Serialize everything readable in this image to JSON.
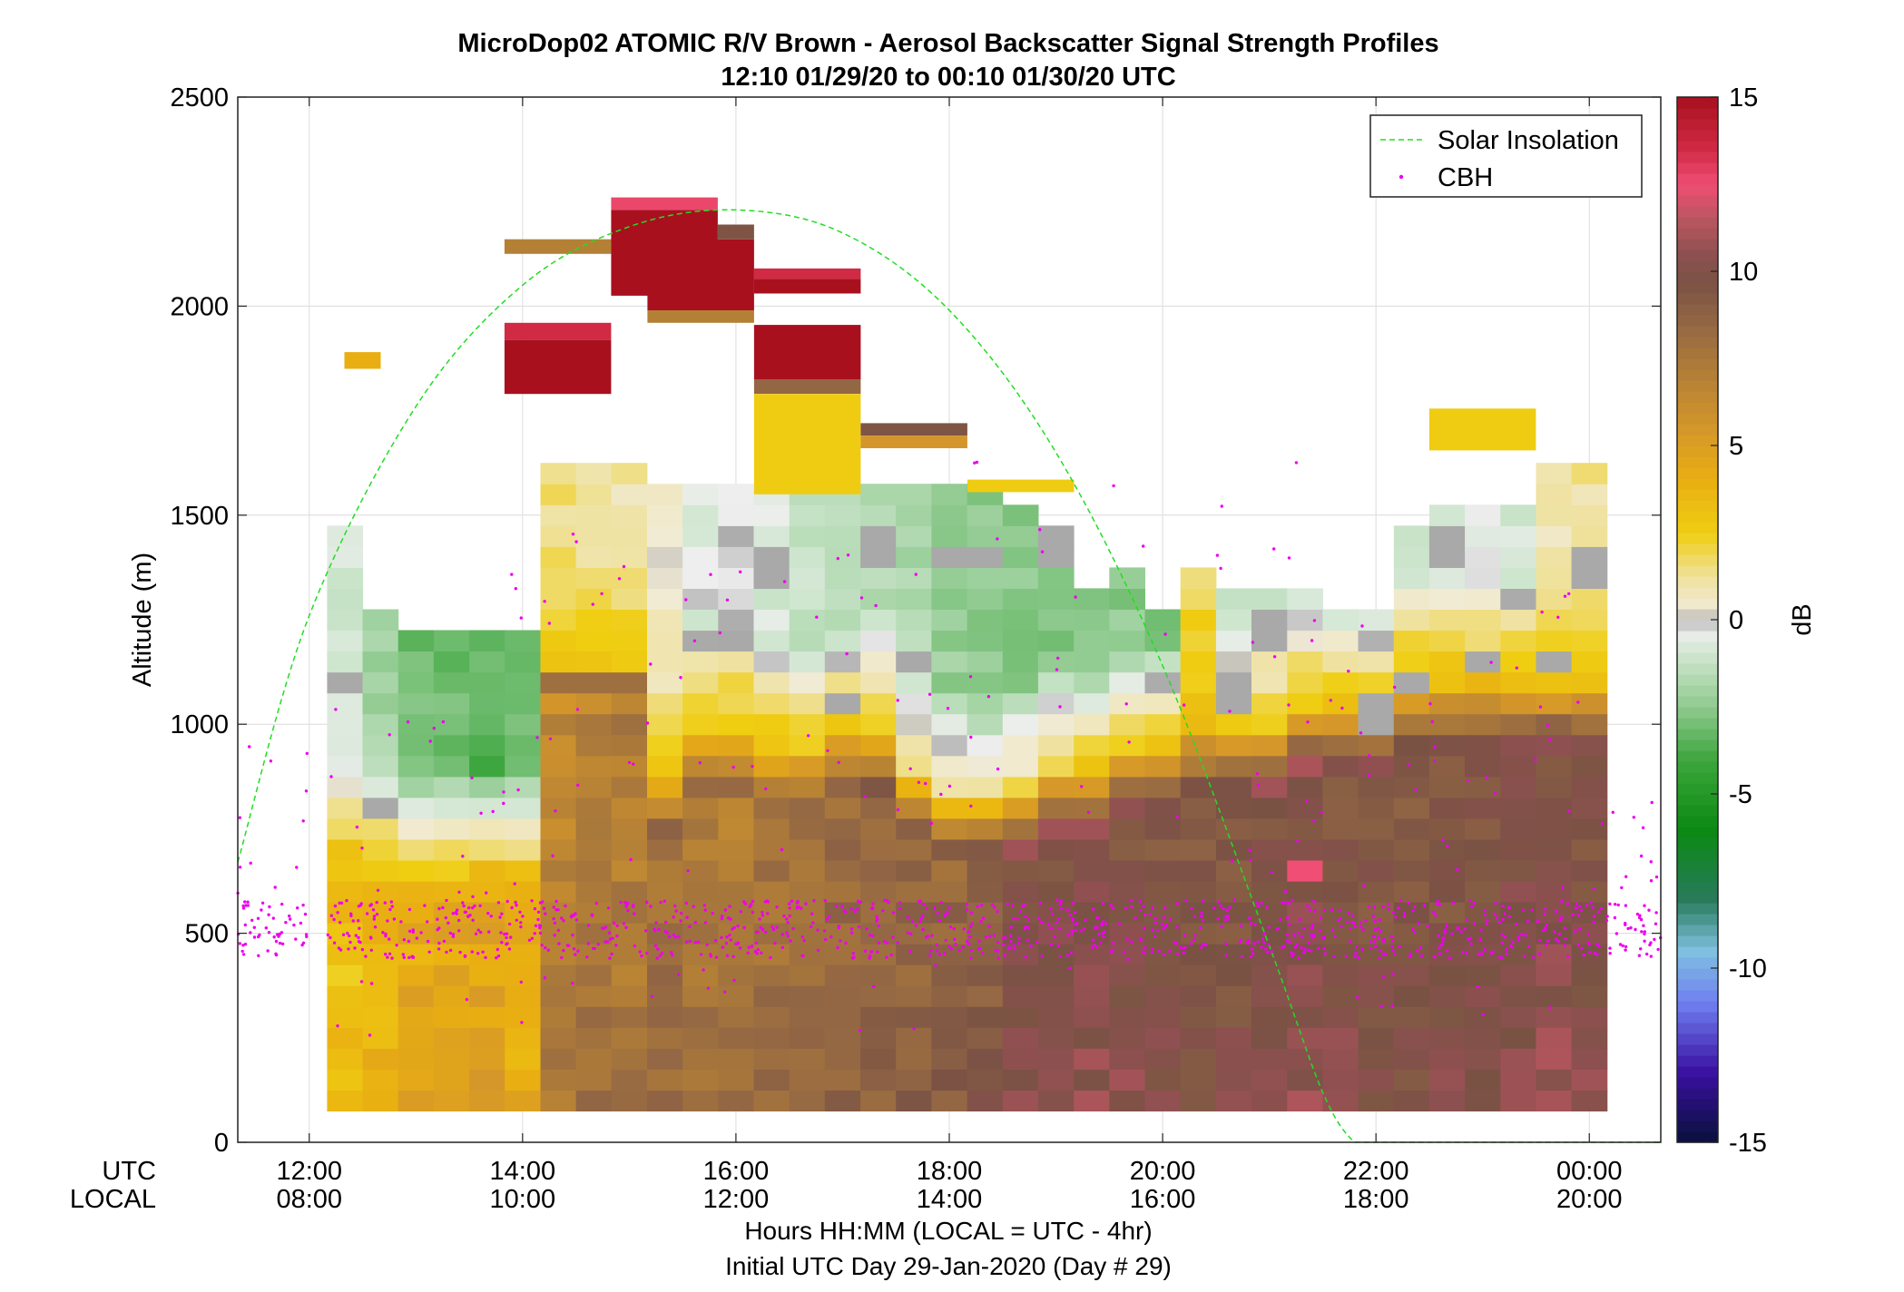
{
  "chart_data": {
    "type": "heatmap",
    "title": "MicroDop02 ATOMIC R/V Brown - Aerosol Backscatter Signal Strength Profiles",
    "subtitle": "12:10 01/29/20 to 00:10 01/30/20  UTC",
    "ylabel": "Altitude (m)",
    "xlabel_line1": "Hours HH:MM  (LOCAL = UTC - 4hr)",
    "xlabel_line2": "Initial UTC Day 29-Jan-2020 (Day # 29)",
    "utc_row_label": "UTC",
    "local_row_label": "LOCAL",
    "colorbar_label": "dB",
    "xlim_utc_hours": [
      11.33,
      24.67
    ],
    "ylim": [
      0,
      2500
    ],
    "clim": [
      -15,
      15
    ],
    "grid": true,
    "legend_position": "top-right",
    "legend": [
      {
        "name": "Solar Insolation",
        "style": "dashed-line",
        "color": "#22dd22"
      },
      {
        "name": "CBH",
        "style": "dot",
        "color": "#ee00ee"
      }
    ],
    "x_ticks": [
      {
        "utc_hour": 12,
        "utc": "12:00",
        "local": "08:00"
      },
      {
        "utc_hour": 14,
        "utc": "14:00",
        "local": "10:00"
      },
      {
        "utc_hour": 16,
        "utc": "16:00",
        "local": "12:00"
      },
      {
        "utc_hour": 18,
        "utc": "18:00",
        "local": "14:00"
      },
      {
        "utc_hour": 20,
        "utc": "20:00",
        "local": "16:00"
      },
      {
        "utc_hour": 22,
        "utc": "22:00",
        "local": "18:00"
      },
      {
        "utc_hour": 24,
        "utc": "00:00",
        "local": "20:00"
      }
    ],
    "y_ticks": [
      {
        "value": 0,
        "label": "0"
      },
      {
        "value": 500,
        "label": "500"
      },
      {
        "value": 1000,
        "label": "1000"
      },
      {
        "value": 1500,
        "label": "1500"
      },
      {
        "value": 2000,
        "label": "2000"
      },
      {
        "value": 2500,
        "label": "2500"
      }
    ],
    "colorbar_ticks": [
      {
        "value": 15,
        "label": "15"
      },
      {
        "value": 10,
        "label": "10"
      },
      {
        "value": 5,
        "label": "5"
      },
      {
        "value": 0,
        "label": "0"
      },
      {
        "value": -5,
        "label": "-5"
      },
      {
        "value": -10,
        "label": "-10"
      },
      {
        "value": -15,
        "label": "-15"
      }
    ],
    "colormap_stops": [
      {
        "v": -15,
        "color": "#08103a"
      },
      {
        "v": -13,
        "color": "#3a10a0"
      },
      {
        "v": -11,
        "color": "#6f7ff0"
      },
      {
        "v": -9.5,
        "color": "#7fc0e0"
      },
      {
        "v": -8,
        "color": "#287a5a"
      },
      {
        "v": -6,
        "color": "#0b8a12"
      },
      {
        "v": -4,
        "color": "#3ea63e"
      },
      {
        "v": -2.5,
        "color": "#8fca8f"
      },
      {
        "v": -1,
        "color": "#cfe6cf"
      },
      {
        "v": -0.3,
        "color": "#eeeeee"
      },
      {
        "v": 0,
        "color": "#a9a9a9"
      },
      {
        "v": 0.3,
        "color": "#f1ebd6"
      },
      {
        "v": 1.2,
        "color": "#efe2a0"
      },
      {
        "v": 2.5,
        "color": "#efce12"
      },
      {
        "v": 4,
        "color": "#e9ae12"
      },
      {
        "v": 5.5,
        "color": "#d4962a"
      },
      {
        "v": 7,
        "color": "#b48036"
      },
      {
        "v": 8.5,
        "color": "#936744"
      },
      {
        "v": 9.7,
        "color": "#7a5244"
      },
      {
        "v": 10.5,
        "color": "#8e5050"
      },
      {
        "v": 11.5,
        "color": "#b9575f"
      },
      {
        "v": 12.5,
        "color": "#f04e74"
      },
      {
        "v": 13.5,
        "color": "#d02a44"
      },
      {
        "v": 15,
        "color": "#a8101e"
      }
    ],
    "profile_columns_utc_start": [
      12.167,
      12.5,
      12.833,
      13.167,
      13.5,
      13.833,
      14.167,
      14.5,
      14.833,
      15.167,
      15.5,
      15.833,
      16.167,
      16.5,
      16.833,
      17.167,
      17.5,
      17.833,
      18.167,
      18.5,
      18.833,
      19.167,
      19.5,
      19.833,
      20.167,
      20.5,
      20.833,
      21.167,
      21.5,
      21.833,
      22.167,
      22.5,
      22.833,
      23.167,
      23.5,
      23.833
    ],
    "profile_column_width_hours": 0.333,
    "range_bin_m": 50,
    "profiles_db": [
      {
        "base": 75,
        "top": 1475,
        "low": 3.5,
        "mid": 2.8,
        "bl": 700,
        "upper": -1.0,
        "peak_alt": 1100,
        "peak_db": 0.0
      },
      {
        "base": 75,
        "top": 1250,
        "low": 4.2,
        "mid": 2.6,
        "bl": 680,
        "upper": -2.0,
        "peak_alt": 800,
        "peak_db": 0.0
      },
      {
        "base": 75,
        "top": 1225,
        "low": 5.0,
        "mid": 3.0,
        "bl": 650,
        "upper": -3.0
      },
      {
        "base": 75,
        "top": 1225,
        "low": 5.0,
        "mid": 2.9,
        "bl": 650,
        "upper": -3.2
      },
      {
        "base": 75,
        "top": 1225,
        "low": 5.2,
        "mid": 3.2,
        "bl": 650,
        "upper": -3.5
      },
      {
        "base": 75,
        "top": 1225,
        "low": 4.5,
        "mid": 3.0,
        "bl": 650,
        "upper": -3.0
      },
      {
        "base": 75,
        "top": 1625,
        "low": 7.5,
        "mid": 2.8,
        "bl": 1150,
        "upper": 1.5,
        "peak_alt": 1100,
        "peak_db": 8.0
      },
      {
        "base": 75,
        "top": 1625,
        "low": 8.0,
        "mid": 3.0,
        "bl": 1150,
        "upper": 1.2,
        "peak_alt": 1100,
        "peak_db": 8.0
      },
      {
        "base": 75,
        "top": 1625,
        "low": 7.8,
        "mid": 2.7,
        "bl": 1150,
        "upper": 1.0,
        "peak_alt": 1100,
        "peak_db": 8.0
      },
      {
        "base": 75,
        "top": 1550,
        "low": 8.5,
        "mid": 2.5,
        "bl": 900,
        "upper": 0.6
      },
      {
        "base": 75,
        "top": 1550,
        "low": 8.2,
        "mid": 2.8,
        "bl": 1000,
        "upper": -0.6
      },
      {
        "base": 75,
        "top": 1550,
        "low": 8.0,
        "mid": 3.0,
        "bl": 1000,
        "upper": -0.5,
        "peak_alt": 1200,
        "peak_db": 0.0
      },
      {
        "base": 75,
        "top": 1550,
        "low": 8.5,
        "mid": 2.8,
        "bl": 950,
        "upper": -0.7,
        "peak_alt": 1375,
        "peak_db": 0.0
      },
      {
        "base": 75,
        "top": 1550,
        "low": 8.8,
        "mid": 2.8,
        "bl": 950,
        "upper": -1.2
      },
      {
        "base": 75,
        "top": 1550,
        "low": 9.0,
        "mid": 2.6,
        "bl": 1000,
        "upper": -1.5,
        "peak_alt": 1050,
        "peak_db": 0.0
      },
      {
        "base": 75,
        "top": 1550,
        "low": 9.0,
        "mid": 2.4,
        "bl": 1000,
        "upper": -1.5,
        "peak_alt": 1425,
        "peak_db": 0.0
      },
      {
        "base": 75,
        "top": 1550,
        "low": 9.2,
        "mid": 1.5,
        "bl": 900,
        "upper": -1.8,
        "peak_alt": 1150,
        "peak_db": 0.0
      },
      {
        "base": 75,
        "top": 1550,
        "low": 9.3,
        "mid": 1.2,
        "bl": 850,
        "upper": -2.2,
        "peak_alt": 1400,
        "peak_db": 0.0
      },
      {
        "base": 75,
        "top": 1550,
        "low": 9.5,
        "mid": 1.0,
        "bl": 850,
        "upper": -2.5,
        "peak_alt": 1400,
        "peak_db": 0.0
      },
      {
        "base": 75,
        "top": 1500,
        "low": 10.5,
        "mid": 1.8,
        "bl": 850,
        "upper": -2.6
      },
      {
        "base": 75,
        "top": 1475,
        "low": 10.6,
        "mid": 2.4,
        "bl": 900,
        "upper": -2.7,
        "peak_alt": 1425,
        "peak_db": 0.0
      },
      {
        "base": 75,
        "top": 1325,
        "low": 10.7,
        "mid": 2.8,
        "bl": 900,
        "upper": -2.8
      },
      {
        "base": 75,
        "top": 1375,
        "low": 10.5,
        "mid": 2.8,
        "bl": 950,
        "upper": -2.5
      },
      {
        "base": 75,
        "top": 1250,
        "low": 10.2,
        "mid": 3.0,
        "bl": 950,
        "upper": -2.8
      },
      {
        "base": 75,
        "top": 1375,
        "low": 10.0,
        "mid": 3.2,
        "bl": 1000,
        "upper": 1.5,
        "peak_alt": 1250,
        "peak_db": 2.6
      },
      {
        "base": 75,
        "top": 1300,
        "low": 10.2,
        "mid": 3.0,
        "bl": 1000,
        "upper": -1.0,
        "peak_alt": 1075,
        "peak_db": 0.0
      },
      {
        "base": 75,
        "top": 1300,
        "low": 10.5,
        "mid": 2.8,
        "bl": 1000,
        "upper": -0.8,
        "peak_alt": 1225,
        "peak_db": 0.0
      },
      {
        "base": 75,
        "top": 1300,
        "low": 10.8,
        "mid": 3.0,
        "bl": 1050,
        "upper": -1.0,
        "peak_alt": 650,
        "peak_db": 12.5
      },
      {
        "base": 75,
        "top": 1275,
        "low": 10.5,
        "mid": 3.0,
        "bl": 1050,
        "upper": -1.5
      },
      {
        "base": 75,
        "top": 1275,
        "low": 10.2,
        "mid": 3.2,
        "bl": 1050,
        "upper": -1.6,
        "peak_alt": 1025,
        "peak_db": 0.0
      },
      {
        "base": 75,
        "top": 1450,
        "low": 10.0,
        "mid": 3.5,
        "bl": 1100,
        "upper": -0.8,
        "peak_alt": 1100,
        "peak_db": 0.0
      },
      {
        "base": 75,
        "top": 1500,
        "low": 10.2,
        "mid": 3.5,
        "bl": 1100,
        "upper": -0.6,
        "peak_alt": 1425,
        "peak_db": 0.0
      },
      {
        "base": 75,
        "top": 1500,
        "low": 10.4,
        "mid": 3.5,
        "bl": 1100,
        "upper": -0.7,
        "peak_alt": 1150,
        "peak_db": 0.0
      },
      {
        "base": 75,
        "top": 1500,
        "low": 10.6,
        "mid": 3.2,
        "bl": 1100,
        "upper": -0.7
      },
      {
        "base": 75,
        "top": 1625,
        "low": 10.8,
        "mid": 3.0,
        "bl": 1100,
        "upper": 1.0,
        "peak_alt": 1150,
        "peak_db": 0.0
      },
      {
        "base": 75,
        "top": 1625,
        "low": 10.5,
        "mid": 3.0,
        "bl": 1100,
        "upper": 1.2,
        "peak_alt": 1375,
        "peak_db": 0.0
      }
    ],
    "cloud_layers_db": [
      {
        "utc_start": 12.33,
        "utc_end": 12.67,
        "alt_bottom": 1850,
        "alt_top": 1890,
        "db": 4.0
      },
      {
        "utc_start": 13.83,
        "utc_end": 14.83,
        "alt_bottom": 2125,
        "alt_top": 2160,
        "db": 7.0
      },
      {
        "utc_start": 13.83,
        "utc_end": 14.83,
        "alt_bottom": 1790,
        "alt_top": 1920,
        "db": 15.0
      },
      {
        "utc_start": 13.83,
        "utc_end": 14.83,
        "alt_bottom": 1920,
        "alt_top": 1960,
        "db": 13.5
      },
      {
        "utc_start": 14.83,
        "utc_end": 15.83,
        "alt_bottom": 2025,
        "alt_top": 2230,
        "db": 15.0
      },
      {
        "utc_start": 14.83,
        "utc_end": 15.83,
        "alt_bottom": 2230,
        "alt_top": 2260,
        "db": 12.7
      },
      {
        "utc_start": 15.17,
        "utc_end": 16.17,
        "alt_bottom": 1990,
        "alt_top": 2160,
        "db": 15.0
      },
      {
        "utc_start": 15.17,
        "utc_end": 16.17,
        "alt_bottom": 1960,
        "alt_top": 1990,
        "db": 7.0
      },
      {
        "utc_start": 15.83,
        "utc_end": 16.17,
        "alt_bottom": 2160,
        "alt_top": 2195,
        "db": 9.5
      },
      {
        "utc_start": 16.17,
        "utc_end": 17.17,
        "alt_bottom": 2030,
        "alt_top": 2065,
        "db": 15.0
      },
      {
        "utc_start": 16.17,
        "utc_end": 17.17,
        "alt_bottom": 2065,
        "alt_top": 2090,
        "db": 13.5
      },
      {
        "utc_start": 16.17,
        "utc_end": 17.17,
        "alt_bottom": 1825,
        "alt_top": 1955,
        "db": 15.0
      },
      {
        "utc_start": 16.17,
        "utc_end": 17.17,
        "alt_bottom": 1790,
        "alt_top": 1825,
        "db": 8.5
      },
      {
        "utc_start": 16.17,
        "utc_end": 17.17,
        "alt_bottom": 1550,
        "alt_top": 1790,
        "db": 2.6
      },
      {
        "utc_start": 17.17,
        "utc_end": 18.17,
        "alt_bottom": 1690,
        "alt_top": 1720,
        "db": 9.5
      },
      {
        "utc_start": 17.17,
        "utc_end": 18.17,
        "alt_bottom": 1660,
        "alt_top": 1690,
        "db": 5.5
      },
      {
        "utc_start": 18.17,
        "utc_end": 19.17,
        "alt_bottom": 1555,
        "alt_top": 1585,
        "db": 2.6
      },
      {
        "utc_start": 22.5,
        "utc_end": 23.5,
        "alt_bottom": 1655,
        "alt_top": 1755,
        "db": 2.6
      }
    ],
    "solar_insolation": {
      "utc_hour": [
        11.33,
        12,
        13,
        14,
        15,
        16,
        17,
        18,
        19,
        20,
        21,
        21.5,
        21.8,
        22,
        23,
        24,
        24.67
      ],
      "altitude_m": [
        670,
        1260,
        1760,
        2050,
        2190,
        2230,
        2175,
        1990,
        1650,
        1140,
        470,
        120,
        0,
        0,
        0,
        0,
        0
      ]
    },
    "cbh_points": {
      "band_utc_start": [
        11.33,
        12.17,
        13.83,
        18.0,
        21.5,
        24.0
      ],
      "band_utc_end": [
        12.0,
        13.83,
        18.0,
        21.5,
        24.0,
        24.67
      ],
      "band_alt_min": [
        400,
        250,
        250,
        400,
        300,
        440
      ],
      "band_alt_max": [
        990,
        1050,
        1470,
        1630,
        1320,
        960
      ],
      "dense_alt_range": [
        440,
        580
      ]
    }
  }
}
